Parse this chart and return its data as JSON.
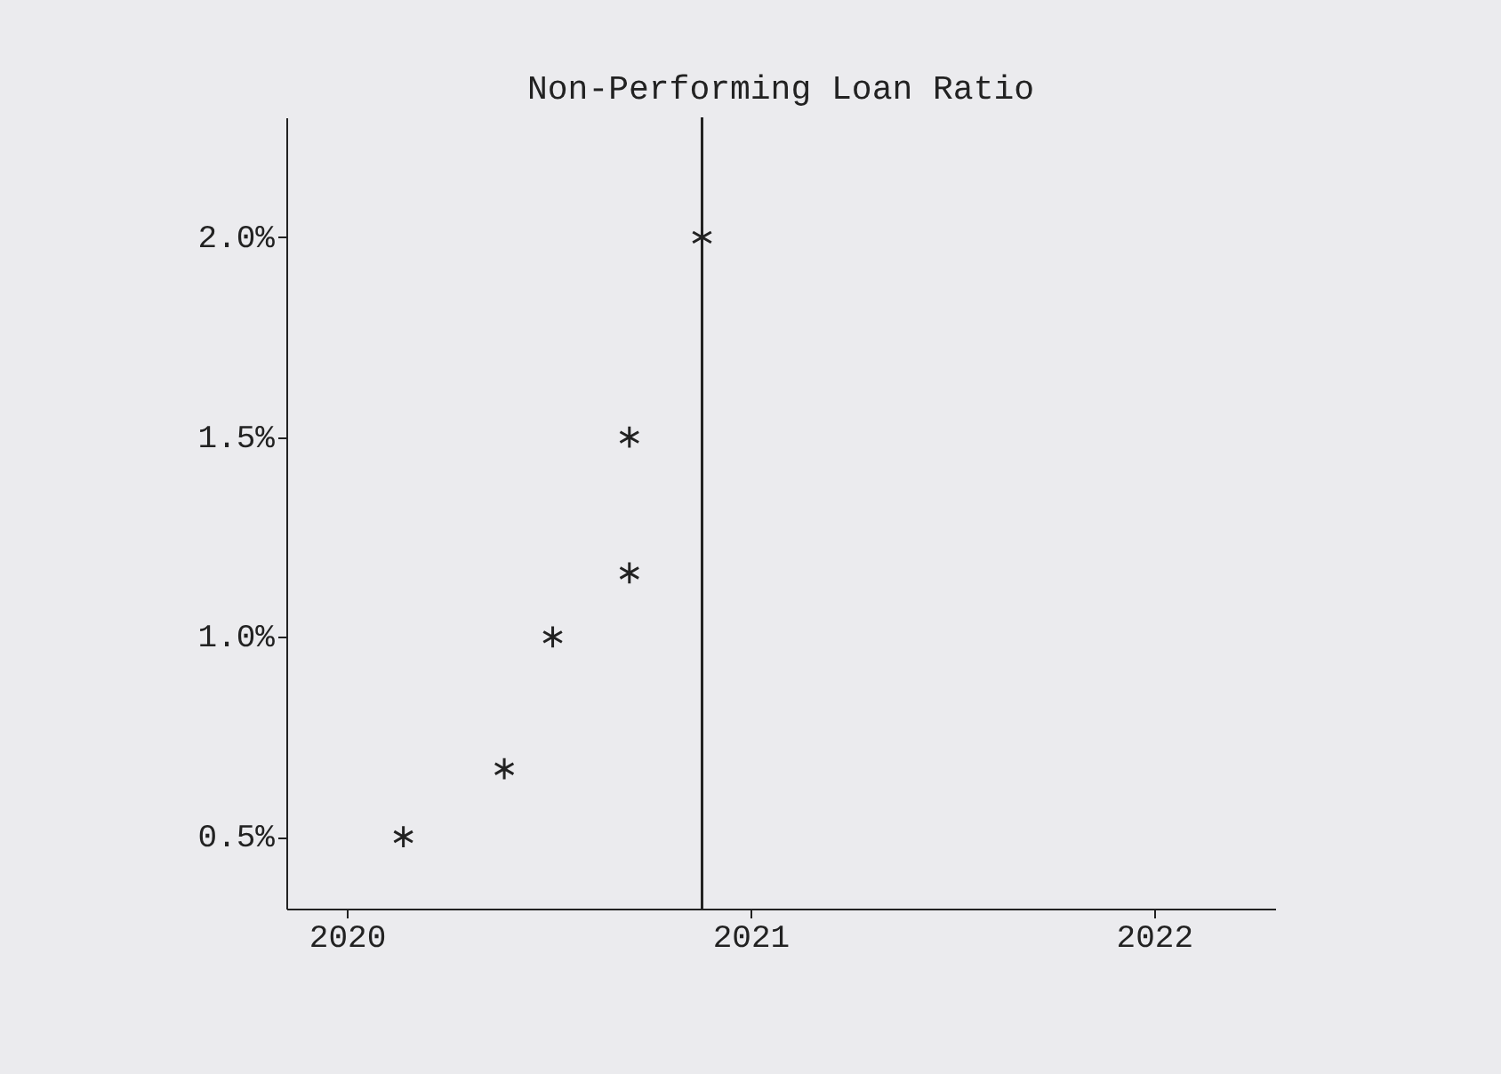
{
  "chart_data": {
    "type": "scatter",
    "title": "Non-Performing Loan Ratio",
    "x": [
      2020.14,
      2020.39,
      2020.51,
      2020.7,
      2020.7,
      2020.88
    ],
    "values": [
      0.5,
      0.67,
      1.0,
      1.16,
      1.5,
      2.0
    ],
    "color": "#222222",
    "marker": "cross",
    "grid": false,
    "xlim": [
      2019.85,
      2022.3
    ],
    "xticks": [
      2020,
      2021,
      2022
    ],
    "ylim": [
      0.32,
      2.3
    ],
    "yticks": [
      {
        "value": 0.5,
        "label": "0.5%"
      },
      {
        "value": 1.0,
        "label": "1.0%"
      },
      {
        "value": 1.5,
        "label": "1.5%"
      },
      {
        "value": 2.0,
        "label": "2.0%"
      }
    ],
    "ref_lines": [
      {
        "axis": "x",
        "value": 2020.88,
        "color": "#222222"
      }
    ]
  }
}
